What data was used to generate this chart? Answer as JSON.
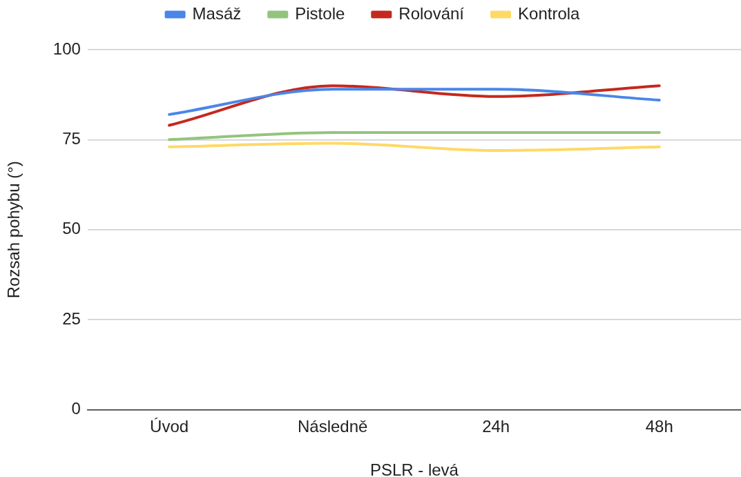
{
  "chart_data": {
    "type": "line",
    "xlabel": "PSLR - levá",
    "ylabel": "Rozsah pohybu (°)",
    "categories": [
      "Úvod",
      "Následně",
      "24h",
      "48h"
    ],
    "series": [
      {
        "name": "Masáž",
        "color": "#4a86e8",
        "values": [
          82,
          89,
          89,
          86
        ]
      },
      {
        "name": "Pistole",
        "color": "#93c47d",
        "values": [
          75,
          77,
          77,
          77
        ]
      },
      {
        "name": "Rolování",
        "color": "#c5281e",
        "values": [
          79,
          90,
          87,
          90
        ]
      },
      {
        "name": "Kontrola",
        "color": "#ffd966",
        "values": [
          73,
          74,
          72,
          73
        ]
      }
    ],
    "ylim": [
      0,
      100
    ],
    "yticks": [
      0,
      25,
      50,
      75,
      100
    ],
    "grid": "y",
    "legend": "top",
    "marker": "none",
    "line_style": "solid"
  }
}
